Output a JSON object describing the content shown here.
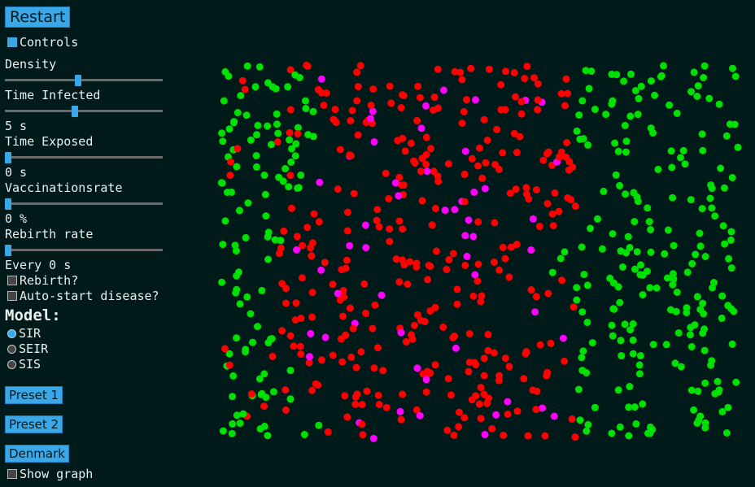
{
  "buttons": {
    "restart": "Restart",
    "preset1": "Preset 1",
    "preset2": "Preset 2",
    "denmark": "Denmark"
  },
  "controls": {
    "toggle_label": "Controls",
    "toggle_checked": true,
    "density": {
      "label": "Density",
      "level": 0.47
    },
    "time_infected": {
      "label": "Time Infected",
      "value": "5 s",
      "level": 0.44
    },
    "time_exposed": {
      "label": "Time Exposed",
      "value": "0 s",
      "level": 0.0
    },
    "vaccination": {
      "label": "Vaccinationsrate",
      "value": "0 %",
      "level": 0.0
    },
    "rebirth_rate": {
      "label": "Rebirth rate",
      "value": "Every 0 s",
      "level": 0.0
    },
    "rebirth_check": "Rebirth?",
    "autostart_check": "Auto-start disease?",
    "show_graph": "Show graph"
  },
  "model": {
    "title": "Model:",
    "options": [
      "SIR",
      "SEIR",
      "SIS"
    ],
    "selected": "SIR"
  },
  "colors": {
    "susceptible": "#00e000",
    "infected": "#ff0000",
    "recovered": "#ff00ff",
    "background": "#001a1a",
    "accent": "#3aa7e8"
  }
}
